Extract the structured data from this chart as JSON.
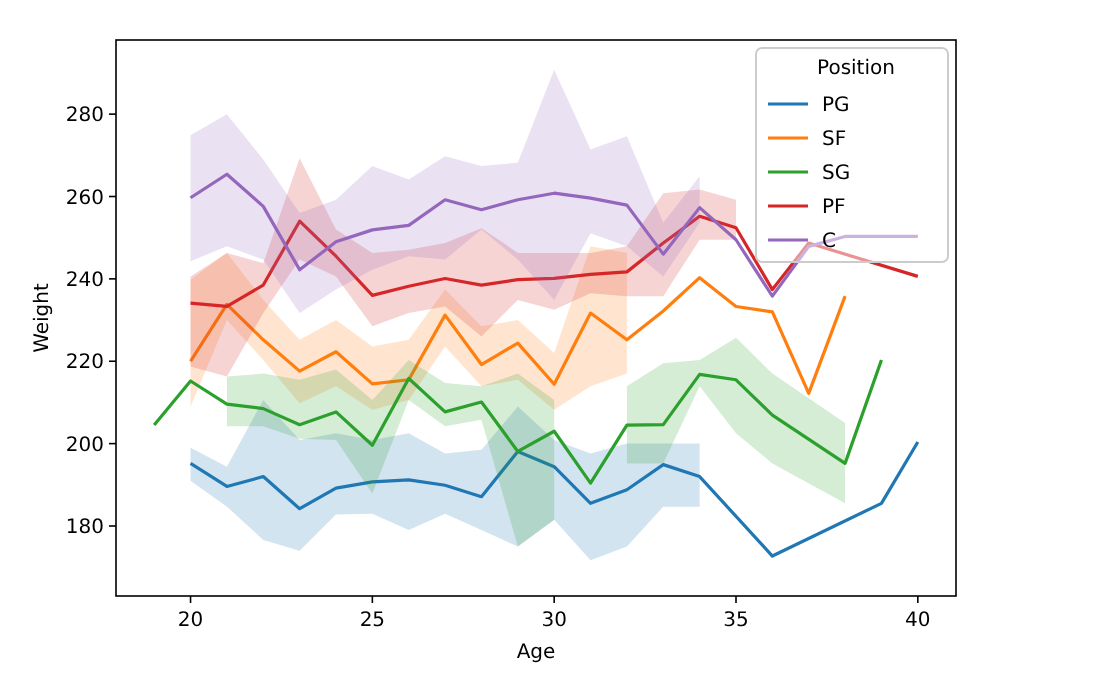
{
  "chart_data": {
    "type": "line",
    "xlabel": "Age",
    "ylabel": "Weight",
    "legend_title": "Position",
    "legend": "top right",
    "grid": false,
    "xlim": [
      17.95,
      41.05
    ],
    "ylim": [
      163,
      298
    ],
    "xticks": [
      20,
      25,
      30,
      35,
      40
    ],
    "yticks": [
      180,
      200,
      220,
      240,
      260,
      280
    ],
    "series": [
      {
        "name": "PG",
        "color": "#1f77b4",
        "x": [
          20,
          21,
          22,
          23,
          24,
          25,
          26,
          27,
          28,
          29,
          30,
          31,
          32,
          33,
          34,
          36,
          39,
          40
        ],
        "values": [
          195.2,
          189.6,
          192,
          184.2,
          189.2,
          190.7,
          191.2,
          189.9,
          187.1,
          198.1,
          194.4,
          185.5,
          188.8,
          194.9,
          192,
          172.7,
          185.5,
          200.4
        ],
        "lower": [
          191,
          184.7,
          176.6,
          174,
          182.8,
          183,
          179,
          183,
          179,
          175,
          181.5,
          171.7,
          175,
          184.7,
          184.7,
          null,
          null,
          null
        ],
        "upper": [
          199,
          194.4,
          210.6,
          200.9,
          202.5,
          200.9,
          202.5,
          197.6,
          198.5,
          209,
          200.9,
          197.6,
          200,
          200,
          200,
          null,
          null,
          null
        ]
      },
      {
        "name": "SF",
        "color": "#ff7f0e",
        "x": [
          20,
          21,
          22,
          23,
          24,
          25,
          26,
          27,
          28,
          29,
          30,
          31,
          32,
          33,
          34,
          35,
          36,
          37,
          38
        ],
        "values": [
          220,
          233.8,
          225.2,
          217.6,
          222.3,
          214.5,
          215.5,
          231.2,
          219.2,
          224.4,
          214.4,
          231.7,
          225.2,
          232.2,
          240.3,
          233.3,
          232,
          212.2,
          235.8
        ],
        "lower": [
          209,
          230,
          220.3,
          209.8,
          213.9,
          208.2,
          210.6,
          223.6,
          213.9,
          215.5,
          208.2,
          213.9,
          217,
          null,
          null,
          null,
          null,
          null,
          null
        ],
        "upper": [
          239.8,
          246.3,
          234.9,
          225.2,
          230,
          223.6,
          225.2,
          237.4,
          228.5,
          230,
          222,
          247.9,
          246.3,
          null,
          null,
          null,
          null,
          null,
          null
        ]
      },
      {
        "name": "SG",
        "color": "#2ca02c",
        "x": [
          19,
          20,
          21,
          22,
          23,
          24,
          25,
          26,
          27,
          28,
          29,
          30,
          31,
          32,
          33,
          34,
          35,
          36,
          38,
          39
        ],
        "values": [
          204.5,
          215.2,
          209.6,
          208.5,
          204.6,
          207.7,
          199.6,
          215.8,
          207.7,
          210.1,
          198.1,
          203,
          190.4,
          204.5,
          204.6,
          216.8,
          215.5,
          206.9,
          195.2,
          220.3
        ],
        "lower": [
          null,
          null,
          204.2,
          204.2,
          201.2,
          200.9,
          187.9,
          210.6,
          204.2,
          205.8,
          175,
          181.5,
          null,
          195.2,
          195.2,
          213.9,
          202.5,
          195.2,
          185.5,
          null
        ],
        "upper": [
          null,
          null,
          216.3,
          217,
          215.5,
          218,
          210.6,
          220.3,
          214.7,
          213.9,
          217,
          210.6,
          null,
          213.9,
          219.5,
          220.3,
          225.7,
          217,
          205,
          null
        ]
      },
      {
        "name": "PF",
        "color": "#d62728",
        "x": [
          20,
          21,
          22,
          23,
          24,
          25,
          26,
          27,
          28,
          29,
          30,
          31,
          32,
          33,
          34,
          35,
          36,
          37,
          40
        ],
        "values": [
          234.1,
          233.3,
          238.5,
          254,
          245.5,
          236,
          238.2,
          240.1,
          238.5,
          239.8,
          240.1,
          241.1,
          241.7,
          248.7,
          255.2,
          252.4,
          237.4,
          248.7,
          240.6
        ],
        "lower": [
          218.7,
          216.3,
          231.7,
          244.7,
          240.6,
          228.5,
          231.7,
          233.3,
          226,
          234.9,
          232.5,
          236.5,
          235.8,
          235.8,
          249.5,
          249.5,
          null,
          null,
          null
        ],
        "upper": [
          240.6,
          246.3,
          243.8,
          269.3,
          252,
          246.3,
          247.1,
          248.7,
          252.3,
          246.3,
          246.3,
          246.3,
          247.9,
          260.8,
          261.7,
          259.2,
          null,
          null,
          null
        ]
      },
      {
        "name": "C",
        "color": "#9467bd",
        "x": [
          20,
          21,
          22,
          23,
          24,
          25,
          26,
          27,
          28,
          29,
          30,
          31,
          32,
          33,
          34,
          35,
          36,
          37,
          38,
          39,
          40
        ],
        "values": [
          259.7,
          265.4,
          257.6,
          242.2,
          249,
          251.9,
          253,
          259.2,
          256.8,
          259.2,
          260.8,
          259.6,
          257.9,
          246,
          257.3,
          249.5,
          235.8,
          247.9,
          250.3,
          250.3,
          250.3
        ],
        "lower": [
          244.3,
          247.9,
          244.7,
          231.7,
          237.4,
          242.2,
          245.5,
          244.7,
          252,
          244.7,
          234.9,
          251.1,
          247.9,
          240.6,
          253.6,
          null,
          null,
          null,
          null,
          null,
          null
        ],
        "upper": [
          274.9,
          280,
          269,
          256,
          259.2,
          267.4,
          264.1,
          269.8,
          267.4,
          268.2,
          290.8,
          271.4,
          274.6,
          253.6,
          264.9,
          null,
          null,
          null,
          null,
          null,
          null
        ]
      }
    ]
  }
}
